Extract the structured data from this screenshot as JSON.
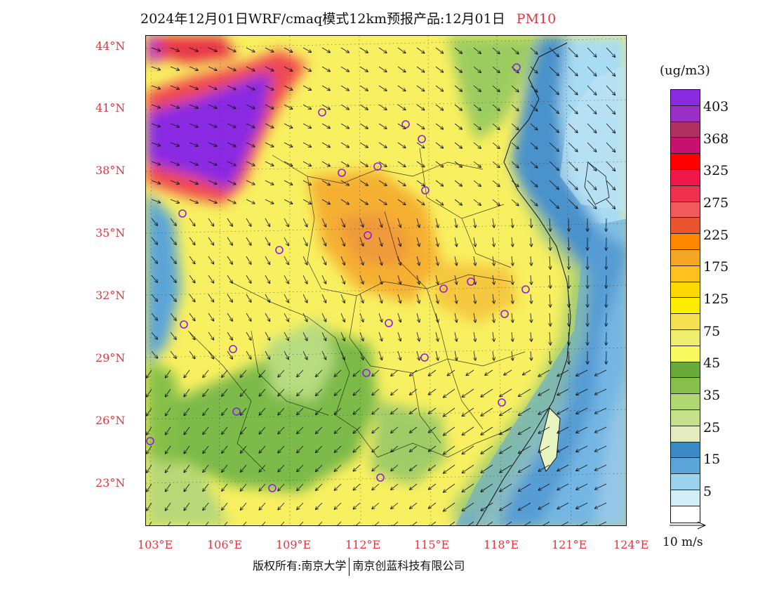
{
  "title": {
    "main": "2024年12月01日WRF/cmaq模式12km预报产品:12月01日",
    "species": "PM10"
  },
  "map": {
    "lat_labels": [
      "44°N",
      "41°N",
      "38°N",
      "35°N",
      "32°N",
      "29°N",
      "26°N",
      "23°N"
    ],
    "lon_labels": [
      "103°E",
      "106°E",
      "109°E",
      "112°E",
      "115°E",
      "118°E",
      "121°E",
      "124°E"
    ],
    "lon_range": [
      103,
      124
    ],
    "lat_range": [
      21,
      44.5
    ]
  },
  "legend": {
    "unit": "(ug/m3)",
    "bins": [
      {
        "color": "#8a2be2"
      },
      {
        "color": "#9b30c9"
      },
      {
        "color": "#b03060"
      },
      {
        "color": "#c8106e"
      },
      {
        "color": "#ff0000"
      },
      {
        "color": "#f0184a"
      },
      {
        "color": "#f0304e"
      },
      {
        "color": "#f05a5a"
      },
      {
        "color": "#e8552e"
      },
      {
        "color": "#ff8800"
      },
      {
        "color": "#f5a623"
      },
      {
        "color": "#ffc020"
      },
      {
        "color": "#ffd800"
      },
      {
        "color": "#ffee00"
      },
      {
        "color": "#f5e050"
      },
      {
        "color": "#f0ee70"
      },
      {
        "color": "#f8fa60"
      },
      {
        "color": "#6aaa3a"
      },
      {
        "color": "#86c04a"
      },
      {
        "color": "#b0d870"
      },
      {
        "color": "#c4e08a"
      },
      {
        "color": "#e4ecc0"
      },
      {
        "color": "#3c88c4"
      },
      {
        "color": "#5aa4d8"
      },
      {
        "color": "#9cd4f0"
      },
      {
        "color": "#d4eef8"
      }
    ],
    "labels": [
      "403",
      "368",
      "325",
      "275",
      "225",
      "175",
      "125",
      "75",
      "45",
      "35",
      "25",
      "15",
      "5"
    ],
    "wind_scale": "10 m/s"
  },
  "copyright": {
    "holder": "版权所有:南京大学",
    "company": "南京创蓝科技有限公司"
  }
}
